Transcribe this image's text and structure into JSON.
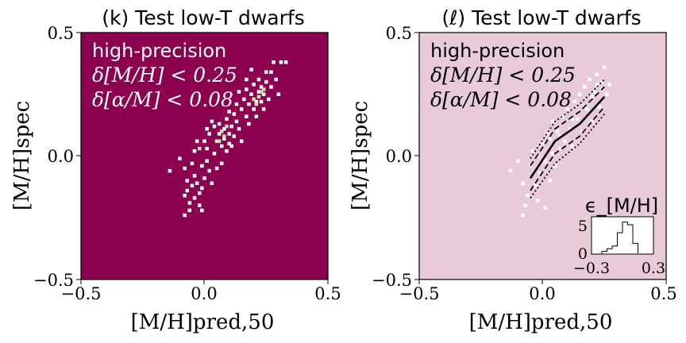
{
  "chart_data": [
    {
      "type": "heatmap",
      "title": "(k) Test low-T dwarfs",
      "xlabel": "[M/H]pred,50",
      "ylabel": "[M/H]spec",
      "xlim": [
        -0.5,
        0.5
      ],
      "ylim": [
        -0.5,
        0.5
      ],
      "xticks": [
        "−0.5",
        "0.0",
        "0.5"
      ],
      "yticks": [
        "−0.5",
        "0.0",
        "0.5"
      ],
      "background_color": "#8b004f",
      "point_color": "#ffffff",
      "highlight_color": "#c7e89b",
      "annotation": [
        "high-precision",
        "δ[M/H] < 0.25",
        "δ[α/M] < 0.08"
      ],
      "grid": false,
      "points": [
        [
          -0.14,
          -0.06
        ],
        [
          -0.1,
          -0.01
        ],
        [
          -0.08,
          -0.05
        ],
        [
          -0.07,
          -0.1
        ],
        [
          -0.07,
          -0.14
        ],
        [
          -0.08,
          -0.16
        ],
        [
          -0.06,
          -0.19
        ],
        [
          -0.08,
          -0.24
        ],
        [
          -0.06,
          -0.22
        ],
        [
          -0.05,
          -0.12
        ],
        [
          -0.05,
          -0.03
        ],
        [
          -0.04,
          0.02
        ],
        [
          -0.04,
          -0.08
        ],
        [
          -0.04,
          -0.17
        ],
        [
          -0.03,
          -0.11
        ],
        [
          -0.02,
          -0.15
        ],
        [
          -0.02,
          -0.2
        ],
        [
          -0.01,
          -0.04
        ],
        [
          -0.01,
          -0.13
        ],
        [
          0.0,
          -0.09
        ],
        [
          0.01,
          -0.02
        ],
        [
          -0.01,
          -0.22
        ],
        [
          0.0,
          0.06
        ],
        [
          0.01,
          0.03
        ],
        [
          0.02,
          -0.06
        ],
        [
          0.02,
          0.09
        ],
        [
          0.03,
          -0.11
        ],
        [
          0.04,
          0.01
        ],
        [
          0.04,
          0.12
        ],
        [
          0.05,
          0.06
        ],
        [
          0.05,
          -0.05
        ],
        [
          0.06,
          0.09
        ],
        [
          0.06,
          0.13
        ],
        [
          0.07,
          0.04
        ],
        [
          0.07,
          -0.03
        ],
        [
          0.08,
          0.11
        ],
        [
          0.08,
          0.07
        ],
        [
          0.09,
          0.02
        ],
        [
          0.09,
          0.15
        ],
        [
          0.1,
          0.09
        ],
        [
          0.1,
          0.05
        ],
        [
          0.1,
          0.18
        ],
        [
          0.11,
          0.12
        ],
        [
          0.11,
          0.04
        ],
        [
          0.12,
          0.08
        ],
        [
          0.12,
          0.17
        ],
        [
          0.13,
          0.14
        ],
        [
          0.13,
          0.21
        ],
        [
          0.14,
          0.11
        ],
        [
          0.15,
          0.19
        ],
        [
          0.15,
          0.06
        ],
        [
          0.16,
          0.23
        ],
        [
          0.17,
          0.16
        ],
        [
          0.17,
          0.27
        ],
        [
          0.18,
          0.13
        ],
        [
          0.18,
          0.21
        ],
        [
          0.19,
          0.25
        ],
        [
          0.2,
          0.19
        ],
        [
          0.2,
          0.29
        ],
        [
          0.21,
          0.22
        ],
        [
          0.21,
          0.16
        ],
        [
          0.22,
          0.26
        ],
        [
          0.22,
          0.31
        ],
        [
          0.23,
          0.22
        ],
        [
          0.23,
          0.28
        ],
        [
          0.24,
          0.25
        ],
        [
          0.24,
          0.19
        ],
        [
          0.25,
          0.3
        ],
        [
          0.25,
          0.34
        ],
        [
          0.26,
          0.23
        ],
        [
          0.27,
          0.28
        ],
        [
          0.27,
          0.34
        ],
        [
          0.28,
          0.38
        ],
        [
          0.29,
          0.31
        ],
        [
          0.3,
          0.25
        ],
        [
          0.31,
          0.38
        ],
        [
          0.33,
          0.38
        ],
        [
          0.17,
          0.31
        ],
        [
          0.19,
          0.35
        ],
        [
          0.14,
          0.26
        ],
        [
          0.03,
          0.14
        ],
        [
          0.01,
          0.11
        ],
        [
          -0.03,
          0.06
        ]
      ],
      "highlight_points": [
        [
          0.07,
          0.1
        ],
        [
          0.09,
          0.12
        ],
        [
          0.08,
          0.08
        ],
        [
          0.2,
          0.23
        ],
        [
          0.22,
          0.24
        ],
        [
          0.23,
          0.26
        ],
        [
          0.24,
          0.27
        ],
        [
          0.21,
          0.21
        ],
        [
          -0.02,
          0.03
        ],
        [
          0.06,
          0.06
        ]
      ]
    },
    {
      "type": "scatter",
      "title": "(ℓ) Test low-T dwarfs",
      "xlabel": "[M/H]pred,50",
      "ylabel": "[M/H]spec",
      "xlim": [
        -0.5,
        0.5
      ],
      "ylim": [
        -0.5,
        0.5
      ],
      "xticks": [
        "−0.5",
        "0.0",
        "0.5"
      ],
      "yticks": [
        "−0.5",
        "0.0",
        "0.5"
      ],
      "background_color": "#e9cad9",
      "point_color": "#ffffff",
      "annotation": [
        "high-precision",
        "δ[M/H] < 0.25",
        "δ[α/M] < 0.08"
      ],
      "grid": false,
      "points": [
        [
          -0.13,
          -0.06
        ],
        [
          -0.1,
          -0.02
        ],
        [
          -0.08,
          -0.11
        ],
        [
          -0.07,
          -0.2
        ],
        [
          -0.08,
          -0.24
        ],
        [
          -0.06,
          -0.16
        ],
        [
          -0.05,
          -0.04
        ],
        [
          -0.04,
          0.02
        ],
        [
          -0.03,
          -0.12
        ],
        [
          -0.02,
          -0.18
        ],
        [
          -0.01,
          -0.07
        ],
        [
          0.0,
          0.05
        ],
        [
          0.01,
          -0.02
        ],
        [
          0.01,
          -0.21
        ],
        [
          0.02,
          0.09
        ],
        [
          0.03,
          -0.1
        ],
        [
          0.04,
          0.01
        ],
        [
          0.04,
          0.14
        ],
        [
          0.05,
          -0.04
        ],
        [
          0.06,
          0.1
        ],
        [
          0.07,
          0.03
        ],
        [
          0.08,
          0.16
        ],
        [
          0.09,
          0.06
        ],
        [
          0.1,
          0.19
        ],
        [
          0.11,
          0.11
        ],
        [
          0.12,
          0.04
        ],
        [
          0.13,
          0.22
        ],
        [
          0.14,
          0.15
        ],
        [
          0.15,
          0.25
        ],
        [
          0.16,
          0.1
        ],
        [
          0.17,
          0.28
        ],
        [
          0.18,
          0.19
        ],
        [
          0.19,
          0.31
        ],
        [
          0.2,
          0.14
        ],
        [
          0.21,
          0.26
        ],
        [
          0.22,
          0.33
        ],
        [
          0.23,
          0.2
        ],
        [
          0.24,
          0.3
        ],
        [
          0.25,
          0.36
        ],
        [
          0.26,
          0.25
        ],
        [
          0.27,
          0.29
        ],
        [
          0.22,
          0.29
        ],
        [
          -0.02,
          0.0
        ],
        [
          0.03,
          0.07
        ],
        [
          0.07,
          0.08
        ],
        [
          0.12,
          0.15
        ],
        [
          0.17,
          0.2
        ],
        [
          0.2,
          0.24
        ],
        [
          0.24,
          0.27
        ]
      ],
      "lines": [
        {
          "style": "solid",
          "x": [
            -0.05,
            0.05,
            0.15,
            0.25
          ],
          "y": [
            -0.09,
            0.06,
            0.13,
            0.24
          ]
        },
        {
          "style": "dashed",
          "x": [
            -0.05,
            0.05,
            0.15,
            0.25
          ],
          "y": [
            -0.14,
            0.01,
            0.08,
            0.2
          ]
        },
        {
          "style": "dashed",
          "x": [
            -0.05,
            0.05,
            0.15,
            0.25
          ],
          "y": [
            -0.04,
            0.11,
            0.18,
            0.28
          ]
        },
        {
          "style": "dotted",
          "x": [
            -0.05,
            0.05,
            0.15,
            0.25
          ],
          "y": [
            -0.17,
            -0.03,
            0.05,
            0.17
          ]
        },
        {
          "style": "dotted",
          "x": [
            -0.05,
            0.05,
            0.15,
            0.25
          ],
          "y": [
            -0.01,
            0.14,
            0.21,
            0.31
          ]
        }
      ],
      "inset": {
        "type": "histogram",
        "title": "ϵ_[M/H]",
        "xlim": [
          -0.3,
          0.3
        ],
        "ylim": [
          0,
          7
        ],
        "xticks": [
          "−0.3",
          "0.3"
        ],
        "yticks": [
          "0",
          "5"
        ],
        "bin_edges": [
          -0.3,
          -0.25,
          -0.2,
          -0.15,
          -0.1,
          -0.05,
          0.0,
          0.05,
          0.1,
          0.15,
          0.2,
          0.25,
          0.3
        ],
        "counts": [
          0,
          0,
          0.5,
          1,
          1.5,
          4,
          6,
          5.5,
          2,
          0,
          0,
          0
        ]
      }
    }
  ]
}
